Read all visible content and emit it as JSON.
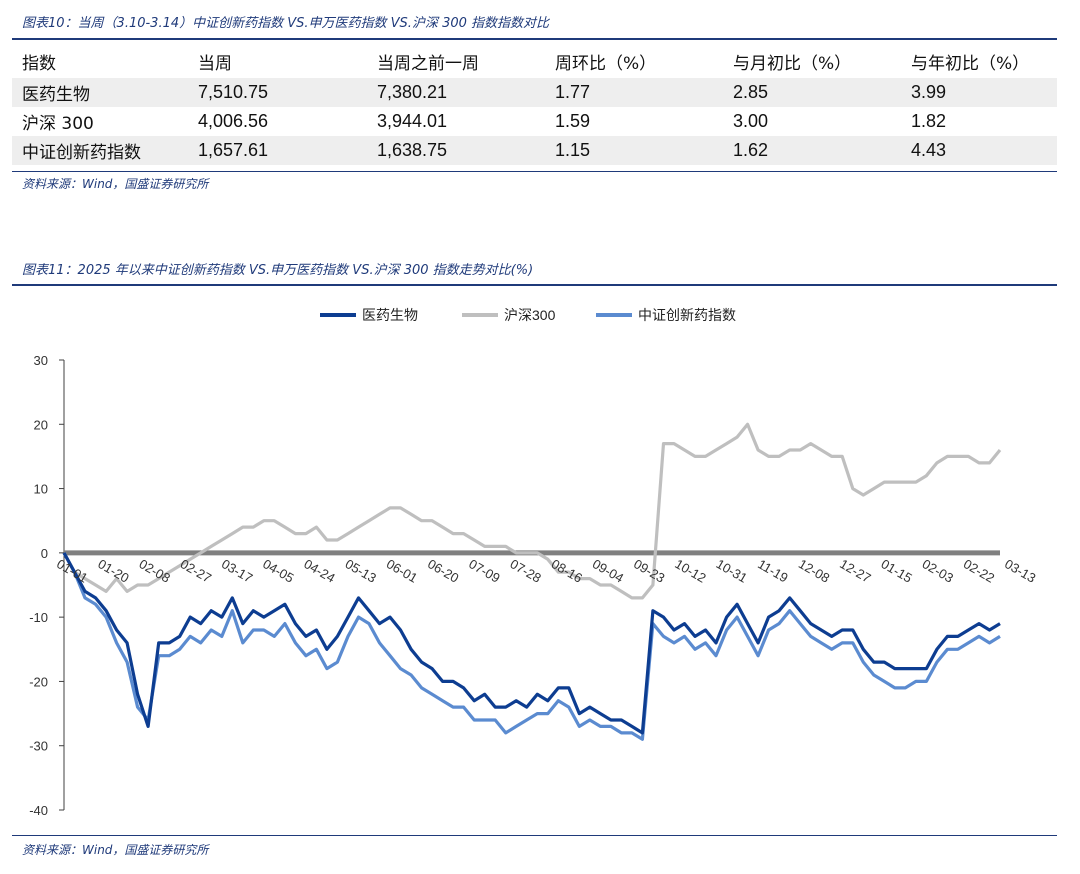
{
  "table_section": {
    "caption": "图表10：当周（3.10-3.14）中证创新药指数 VS.申万医药指数 VS.沪深 300 指数指数对比",
    "headers": [
      "指数",
      "当周",
      "当周之前一周",
      "周环比（%）",
      "与月初比（%）",
      "与年初比（%）"
    ],
    "rows": [
      [
        "医药生物",
        "7,510.75",
        "7,380.21",
        "1.77",
        "2.85",
        "3.99"
      ],
      [
        "沪深 300",
        "4,006.56",
        "3,944.01",
        "1.59",
        "3.00",
        "1.82"
      ],
      [
        "中证创新药指数",
        "1,657.61",
        "1,638.75",
        "1.15",
        "1.62",
        "4.43"
      ]
    ],
    "source": "资料来源：Wind，国盛证券研究所"
  },
  "chart_section": {
    "caption": "图表11：2025 年以来中证创新药指数 VS.申万医药指数 VS.沪深 300 指数走势对比(%)",
    "source": "资料来源：Wind，国盛证券研究所"
  },
  "chart_data": {
    "type": "line",
    "title": "",
    "xlabel": "",
    "ylabel": "",
    "ylim": [
      -40,
      30
    ],
    "yticks": [
      -40,
      -30,
      -20,
      -10,
      0,
      10,
      20,
      30
    ],
    "x_tick_labels": [
      "01-01",
      "01-20",
      "02-08",
      "02-27",
      "03-17",
      "04-05",
      "04-24",
      "05-13",
      "06-01",
      "06-20",
      "07-09",
      "07-28",
      "08-16",
      "09-04",
      "09-23",
      "10-12",
      "10-31",
      "11-19",
      "12-08",
      "12-27",
      "01-15",
      "02-03",
      "02-22",
      "03-13"
    ],
    "legend_position": "top-center",
    "grid": false,
    "zero_line_color": "#808080",
    "series": [
      {
        "name": "医药生物",
        "color": "#0d3d91",
        "values": [
          0,
          -3,
          -6,
          -7,
          -9,
          -12,
          -14,
          -22,
          -27,
          -14,
          -14,
          -13,
          -10,
          -11,
          -9,
          -10,
          -7,
          -11,
          -9,
          -10,
          -9,
          -8,
          -11,
          -13,
          -12,
          -15,
          -13,
          -10,
          -7,
          -9,
          -11,
          -10,
          -12,
          -15,
          -17,
          -18,
          -20,
          -20,
          -21,
          -23,
          -22,
          -24,
          -24,
          -23,
          -24,
          -22,
          -23,
          -21,
          -21,
          -25,
          -24,
          -25,
          -26,
          -26,
          -27,
          -28,
          -9,
          -10,
          -12,
          -11,
          -13,
          -12,
          -14,
          -10,
          -8,
          -11,
          -14,
          -10,
          -9,
          -7,
          -9,
          -11,
          -12,
          -13,
          -12,
          -12,
          -15,
          -17,
          -17,
          -18,
          -18,
          -18,
          -18,
          -15,
          -13,
          -13,
          -12,
          -11,
          -12,
          -11
        ]
      },
      {
        "name": "沪深300",
        "color": "#bfbfbf",
        "values": [
          0,
          -3,
          -4,
          -5,
          -6,
          -4,
          -6,
          -5,
          -5,
          -4,
          -3,
          -2,
          -1,
          0,
          1,
          2,
          3,
          4,
          4,
          5,
          5,
          4,
          3,
          3,
          4,
          2,
          2,
          3,
          4,
          5,
          6,
          7,
          7,
          6,
          5,
          5,
          4,
          3,
          3,
          2,
          1,
          1,
          1,
          0,
          0,
          0,
          -1,
          -3,
          -3,
          -4,
          -4,
          -5,
          -5,
          -6,
          -7,
          -7,
          -5,
          17,
          17,
          16,
          15,
          15,
          16,
          17,
          18,
          20,
          16,
          15,
          15,
          16,
          16,
          17,
          16,
          15,
          15,
          10,
          9,
          10,
          11,
          11,
          11,
          11,
          12,
          14,
          15,
          15,
          15,
          14,
          14,
          16
        ]
      },
      {
        "name": "中证创新药指数",
        "color": "#5b8bd0",
        "values": [
          0,
          -3,
          -7,
          -8,
          -10,
          -14,
          -17,
          -24,
          -26,
          -16,
          -16,
          -15,
          -13,
          -14,
          -12,
          -13,
          -9,
          -14,
          -12,
          -12,
          -13,
          -11,
          -14,
          -16,
          -15,
          -18,
          -17,
          -13,
          -10,
          -11,
          -14,
          -16,
          -18,
          -19,
          -21,
          -22,
          -23,
          -24,
          -24,
          -26,
          -26,
          -26,
          -28,
          -27,
          -26,
          -25,
          -25,
          -23,
          -24,
          -27,
          -26,
          -27,
          -27,
          -28,
          -28,
          -29,
          -11,
          -13,
          -14,
          -13,
          -15,
          -14,
          -16,
          -12,
          -10,
          -13,
          -16,
          -12,
          -11,
          -9,
          -11,
          -13,
          -14,
          -15,
          -14,
          -14,
          -17,
          -19,
          -20,
          -21,
          -21,
          -20,
          -20,
          -17,
          -15,
          -15,
          -14,
          -13,
          -14,
          -13
        ]
      }
    ]
  }
}
